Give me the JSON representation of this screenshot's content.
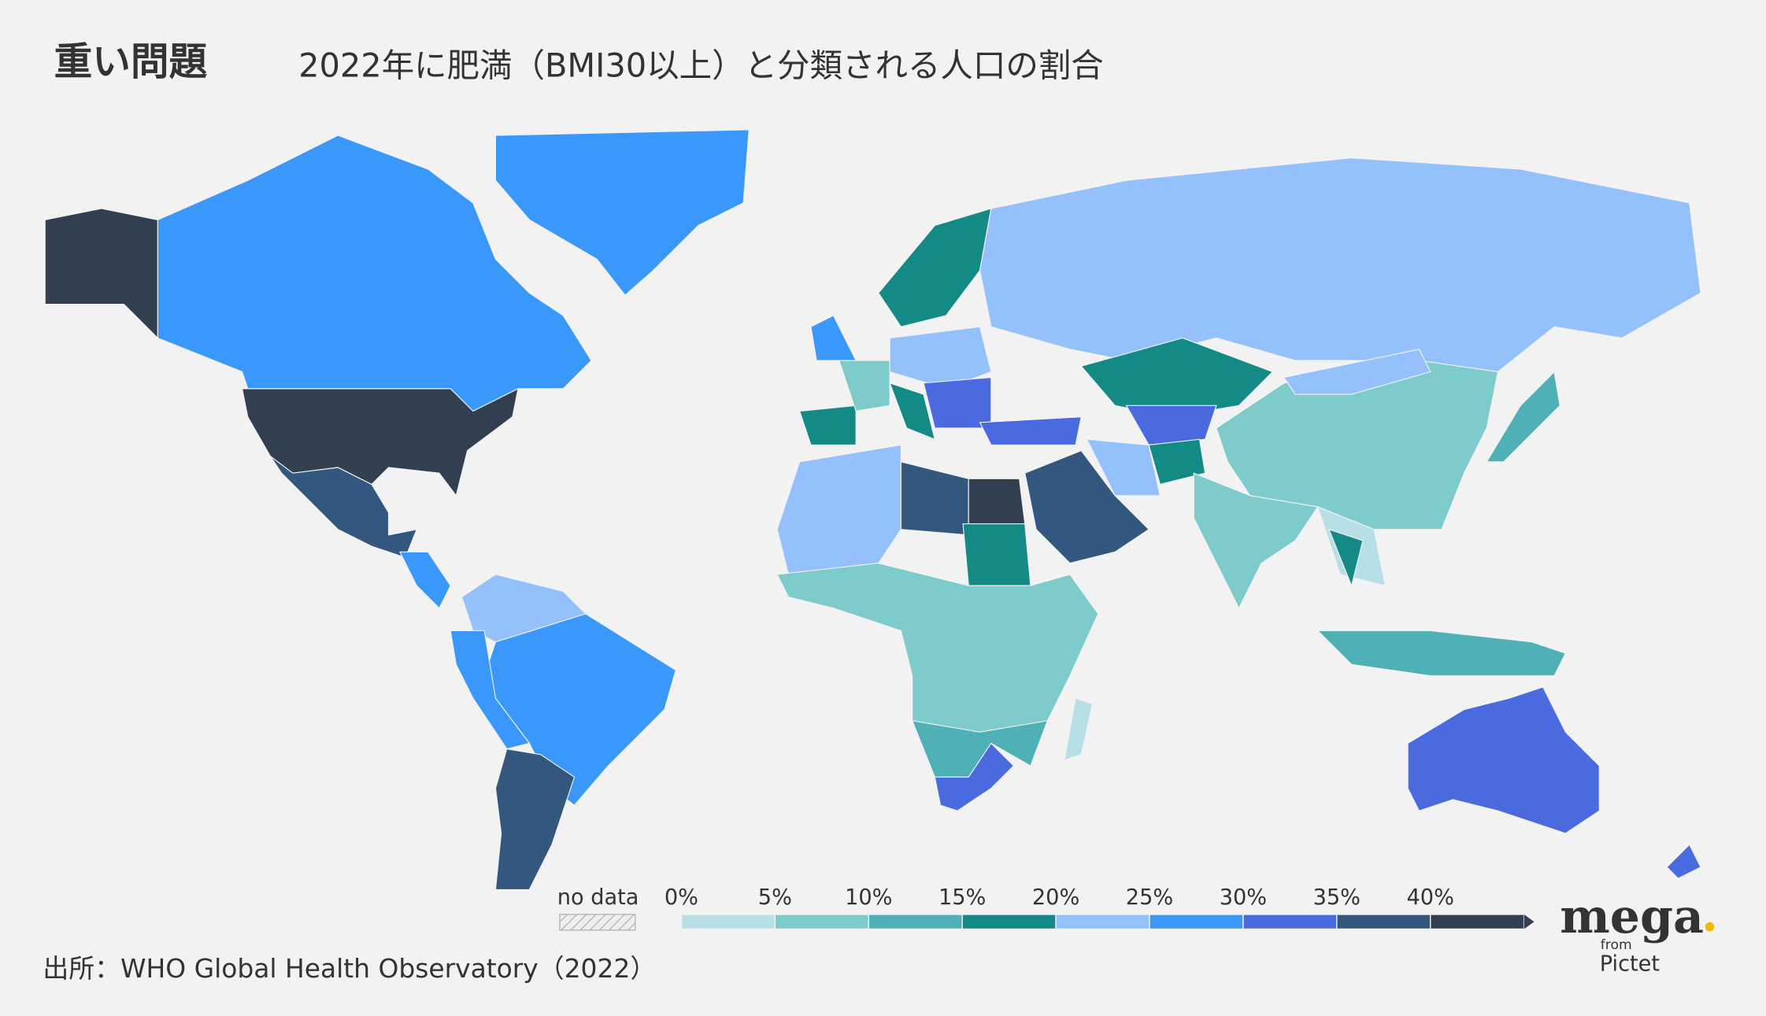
{
  "title": "重い問題",
  "subtitle": "2022年に肥満（BMI30以上）と分類される人口の割合",
  "legend": {
    "no_data_label": "no data",
    "ticks": [
      {
        "value": 0,
        "label": "0%"
      },
      {
        "value": 5,
        "label": "5%"
      },
      {
        "value": 10,
        "label": "10%"
      },
      {
        "value": 15,
        "label": "15%"
      },
      {
        "value": 20,
        "label": "20%"
      },
      {
        "value": 25,
        "label": "25%"
      },
      {
        "value": 30,
        "label": "30%"
      },
      {
        "value": 35,
        "label": "35%"
      },
      {
        "value": 40,
        "label": "40%"
      }
    ],
    "colors": [
      "#b7e0e6",
      "#7ecbcc",
      "#4fb1b5",
      "#148a87",
      "#94c1fb",
      "#3a98fb",
      "#4a6be0",
      "#33577e",
      "#323f51"
    ]
  },
  "source": "出所：WHO Global Health Observatory（2022）",
  "logo": {
    "name": "mega",
    "from": "from",
    "brand": "Pictet"
  }
}
